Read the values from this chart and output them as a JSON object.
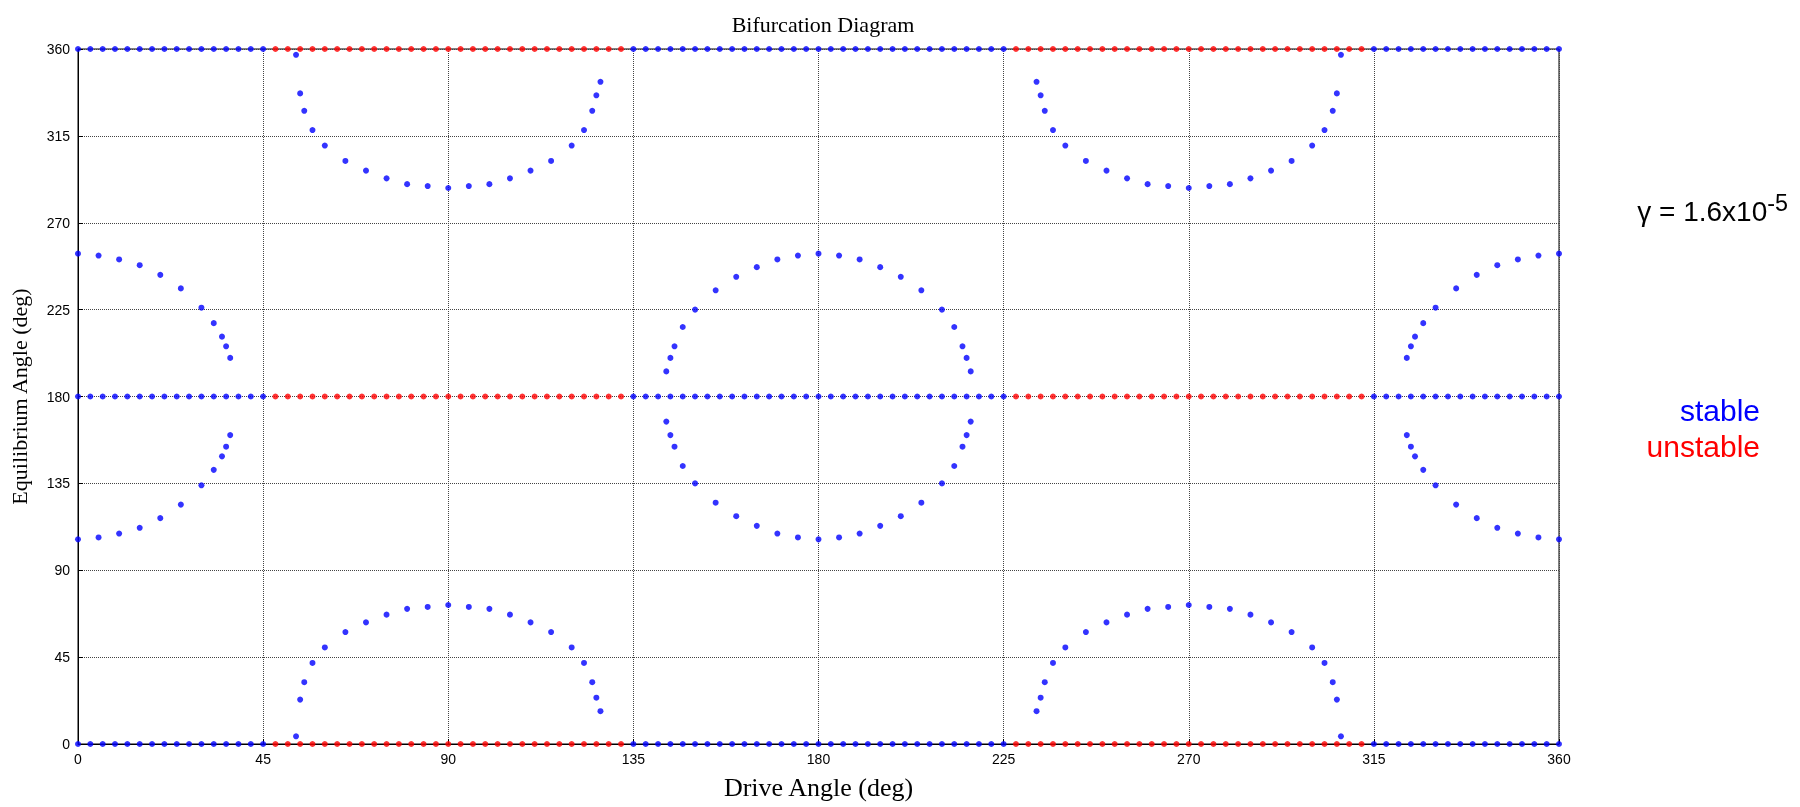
{
  "chart_data": {
    "type": "scatter",
    "title": "Bifurcation Diagram",
    "xlabel": "Drive Angle (deg)",
    "ylabel": "Equilibrium Angle (deg)",
    "annotations": [
      "γ = 1.6x10$^{-5}$"
    ],
    "xlim": [
      0,
      360
    ],
    "xticks": [
      0,
      45,
      90,
      135,
      180,
      225,
      270,
      315,
      360
    ],
    "ylim": [
      0,
      360
    ],
    "yticks": [
      0,
      45,
      90,
      135,
      180,
      225,
      270,
      315,
      360
    ],
    "grid": true,
    "marker": "circle",
    "series": [
      {
        "name": "stable",
        "color": "#0000ff",
        "x": [
          0,
          5,
          10,
          15,
          20,
          25,
          30,
          33,
          35,
          36,
          37,
          0,
          5,
          10,
          15,
          20,
          25,
          30,
          33,
          35,
          36,
          37,
          53,
          54,
          55,
          57,
          60,
          65,
          70,
          75,
          80,
          85,
          90,
          95,
          100,
          105,
          110,
          115,
          120,
          123,
          125,
          126,
          127,
          53,
          54,
          55,
          57,
          60,
          65,
          70,
          75,
          80,
          85,
          90,
          95,
          100,
          105,
          110,
          115,
          120,
          123,
          125,
          126,
          127,
          143,
          144,
          145,
          147,
          150,
          155,
          160,
          165,
          170,
          175,
          180,
          185,
          190,
          195,
          200,
          205,
          210,
          213,
          215,
          216,
          217,
          143,
          144,
          145,
          147,
          150,
          155,
          160,
          165,
          170,
          175,
          180,
          185,
          190,
          195,
          200,
          205,
          210,
          213,
          215,
          216,
          217,
          233,
          234,
          235,
          237,
          240,
          245,
          250,
          255,
          260,
          265,
          270,
          275,
          280,
          285,
          290,
          295,
          300,
          303,
          305,
          306,
          307,
          233,
          234,
          235,
          237,
          240,
          245,
          250,
          255,
          260,
          265,
          270,
          275,
          280,
          285,
          290,
          295,
          300,
          303,
          305,
          306,
          307,
          323,
          324,
          325,
          327,
          330,
          335,
          340,
          345,
          350,
          355,
          360,
          323,
          324,
          325,
          327,
          330,
          335,
          340,
          345,
          350,
          355,
          360,
          0,
          3,
          6,
          9,
          12,
          15,
          18,
          21,
          24,
          27,
          30,
          33,
          36,
          39,
          42,
          45,
          135,
          138,
          141,
          144,
          147,
          150,
          153,
          156,
          159,
          162,
          165,
          168,
          171,
          174,
          177,
          180,
          183,
          186,
          189,
          192,
          195,
          198,
          201,
          204,
          207,
          210,
          213,
          216,
          219,
          222,
          225,
          315,
          318,
          321,
          324,
          327,
          330,
          333,
          336,
          339,
          342,
          345,
          348,
          351,
          354,
          357,
          360,
          0,
          3,
          6,
          9,
          12,
          15,
          18,
          21,
          24,
          27,
          30,
          33,
          36,
          39,
          42,
          45,
          135,
          138,
          141,
          144,
          147,
          150,
          153,
          156,
          159,
          162,
          165,
          168,
          171,
          174,
          177,
          180,
          183,
          186,
          189,
          192,
          195,
          198,
          201,
          204,
          207,
          210,
          213,
          216,
          219,
          222,
          225,
          315,
          318,
          321,
          324,
          327,
          330,
          333,
          336,
          339,
          342,
          345,
          348,
          351,
          354,
          357,
          360,
          0,
          3,
          6,
          9,
          12,
          15,
          18,
          21,
          24,
          27,
          30,
          33,
          36,
          39,
          42,
          45,
          135,
          138,
          141,
          144,
          147,
          150,
          153,
          156,
          159,
          162,
          165,
          168,
          171,
          174,
          177,
          180,
          183,
          186,
          189,
          192,
          195,
          198,
          201,
          204,
          207,
          210,
          213,
          216,
          219,
          222,
          225,
          315,
          318,
          321,
          324,
          327,
          330,
          333,
          336,
          339,
          342,
          345,
          348,
          351,
          354,
          357,
          360
        ],
        "values": [
          254,
          253,
          251,
          248,
          243,
          236,
          226,
          218,
          211,
          206,
          200,
          106,
          107,
          109,
          112,
          117,
          124,
          134,
          142,
          149,
          154,
          160,
          357,
          337,
          328,
          318,
          310,
          302,
          297,
          293,
          290,
          289,
          288,
          289,
          290,
          293,
          297,
          302,
          310,
          318,
          328,
          336,
          343,
          4,
          23,
          32,
          42,
          50,
          58,
          63,
          67,
          70,
          71,
          72,
          71,
          70,
          67,
          63,
          58,
          50,
          42,
          32,
          24,
          17,
          193,
          200,
          206,
          216,
          225,
          235,
          242,
          247,
          251,
          253,
          254,
          253,
          251,
          247,
          242,
          235,
          225,
          216,
          206,
          200,
          193,
          167,
          160,
          154,
          144,
          135,
          125,
          118,
          113,
          109,
          107,
          106,
          107,
          109,
          113,
          118,
          125,
          135,
          144,
          154,
          160,
          167,
          343,
          336,
          328,
          318,
          310,
          302,
          297,
          293,
          290,
          289,
          288,
          289,
          290,
          293,
          297,
          302,
          310,
          318,
          328,
          337,
          357,
          17,
          24,
          32,
          42,
          50,
          58,
          63,
          67,
          70,
          71,
          72,
          71,
          70,
          67,
          63,
          58,
          50,
          42,
          32,
          23,
          4,
          200,
          206,
          211,
          218,
          226,
          236,
          243,
          248,
          251,
          253,
          254,
          160,
          154,
          149,
          142,
          134,
          124,
          117,
          112,
          109,
          107,
          106,
          0,
          0,
          0,
          0,
          0,
          0,
          0,
          0,
          0,
          0,
          0,
          0,
          0,
          0,
          0,
          0,
          0,
          0,
          0,
          0,
          0,
          0,
          0,
          0,
          0,
          0,
          0,
          0,
          0,
          0,
          0,
          0,
          0,
          0,
          0,
          0,
          0,
          0,
          0,
          0,
          0,
          0,
          0,
          0,
          0,
          0,
          0,
          0,
          0,
          0,
          0,
          0,
          0,
          0,
          0,
          0,
          0,
          0,
          0,
          0,
          0,
          0,
          0,
          180,
          180,
          180,
          180,
          180,
          180,
          180,
          180,
          180,
          180,
          180,
          180,
          180,
          180,
          180,
          180,
          180,
          180,
          180,
          180,
          180,
          180,
          180,
          180,
          180,
          180,
          180,
          180,
          180,
          180,
          180,
          180,
          180,
          180,
          180,
          180,
          180,
          180,
          180,
          180,
          180,
          180,
          180,
          180,
          180,
          180,
          180,
          180,
          180,
          180,
          180,
          180,
          180,
          180,
          180,
          180,
          180,
          180,
          180,
          180,
          180,
          180,
          180,
          360,
          360,
          360,
          360,
          360,
          360,
          360,
          360,
          360,
          360,
          360,
          360,
          360,
          360,
          360,
          360,
          360,
          360,
          360,
          360,
          360,
          360,
          360,
          360,
          360,
          360,
          360,
          360,
          360,
          360,
          360,
          360,
          360,
          360,
          360,
          360,
          360,
          360,
          360,
          360,
          360,
          360,
          360,
          360,
          360,
          360,
          360,
          360,
          360,
          360,
          360,
          360,
          360,
          360,
          360,
          360,
          360,
          360,
          360,
          360,
          360,
          360,
          360
        ]
      },
      {
        "name": "unstable",
        "color": "#ff0000",
        "x": [
          48,
          51,
          54,
          57,
          60,
          63,
          66,
          69,
          72,
          75,
          78,
          81,
          84,
          87,
          90,
          93,
          96,
          99,
          102,
          105,
          108,
          111,
          114,
          117,
          120,
          123,
          126,
          129,
          132,
          228,
          231,
          234,
          237,
          240,
          243,
          246,
          249,
          252,
          255,
          258,
          261,
          264,
          267,
          270,
          273,
          276,
          279,
          282,
          285,
          288,
          291,
          294,
          297,
          300,
          303,
          306,
          309,
          312,
          48,
          51,
          54,
          57,
          60,
          63,
          66,
          69,
          72,
          75,
          78,
          81,
          84,
          87,
          90,
          93,
          96,
          99,
          102,
          105,
          108,
          111,
          114,
          117,
          120,
          123,
          126,
          129,
          132,
          228,
          231,
          234,
          237,
          240,
          243,
          246,
          249,
          252,
          255,
          258,
          261,
          264,
          267,
          270,
          273,
          276,
          279,
          282,
          285,
          288,
          291,
          294,
          297,
          300,
          303,
          306,
          309,
          312,
          48,
          51,
          54,
          57,
          60,
          63,
          66,
          69,
          72,
          75,
          78,
          81,
          84,
          87,
          90,
          93,
          96,
          99,
          102,
          105,
          108,
          111,
          114,
          117,
          120,
          123,
          126,
          129,
          132,
          228,
          231,
          234,
          237,
          240,
          243,
          246,
          249,
          252,
          255,
          258,
          261,
          264,
          267,
          270,
          273,
          276,
          279,
          282,
          285,
          288,
          291,
          294,
          297,
          300,
          303,
          306,
          309,
          312
        ],
        "values": [
          0,
          0,
          0,
          0,
          0,
          0,
          0,
          0,
          0,
          0,
          0,
          0,
          0,
          0,
          0,
          0,
          0,
          0,
          0,
          0,
          0,
          0,
          0,
          0,
          0,
          0,
          0,
          0,
          0,
          0,
          0,
          0,
          0,
          0,
          0,
          0,
          0,
          0,
          0,
          0,
          0,
          0,
          0,
          0,
          0,
          0,
          0,
          0,
          0,
          0,
          0,
          0,
          0,
          0,
          0,
          0,
          0,
          0,
          180,
          180,
          180,
          180,
          180,
          180,
          180,
          180,
          180,
          180,
          180,
          180,
          180,
          180,
          180,
          180,
          180,
          180,
          180,
          180,
          180,
          180,
          180,
          180,
          180,
          180,
          180,
          180,
          180,
          180,
          180,
          180,
          180,
          180,
          180,
          180,
          180,
          180,
          180,
          180,
          180,
          180,
          180,
          180,
          180,
          180,
          180,
          180,
          180,
          180,
          180,
          180,
          180,
          180,
          180,
          180,
          180,
          180,
          360,
          360,
          360,
          360,
          360,
          360,
          360,
          360,
          360,
          360,
          360,
          360,
          360,
          360,
          360,
          360,
          360,
          360,
          360,
          360,
          360,
          360,
          360,
          360,
          360,
          360,
          360,
          360,
          360,
          360,
          360,
          360,
          360,
          360,
          360,
          360,
          360,
          360,
          360,
          360,
          360,
          360,
          360,
          360,
          360,
          360,
          360,
          360,
          360,
          360,
          360,
          360,
          360,
          360,
          360,
          360,
          360,
          360
        ]
      }
    ]
  }
}
